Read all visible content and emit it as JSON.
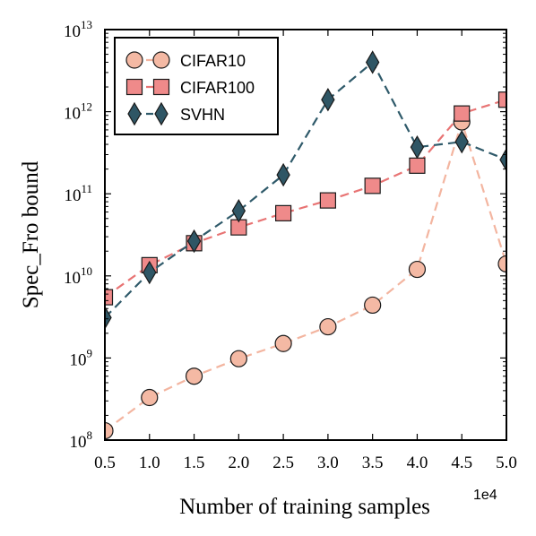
{
  "chart_data": {
    "type": "line",
    "title": "",
    "xlabel": "Number of training samples",
    "ylabel": "Spec_Fro bound",
    "x_offset_label": "1e4",
    "xlim": [
      0.5,
      5.0
    ],
    "ylim": [
      100000000.0,
      10000000000000.0
    ],
    "yscale": "log",
    "x": [
      0.5,
      1.0,
      1.5,
      2.0,
      2.5,
      3.0,
      3.5,
      4.0,
      4.5,
      5.0
    ],
    "x_tick_values": [
      0.5,
      1.0,
      1.5,
      2.0,
      2.5,
      3.0,
      3.5,
      4.0,
      4.5,
      5.0
    ],
    "x_tick_labels": [
      "0.5",
      "1.0",
      "1.5",
      "2.0",
      "2.5",
      "3.0",
      "3.5",
      "4.0",
      "4.5",
      "5.0"
    ],
    "y_tick_exponents": [
      8,
      9,
      10,
      11,
      12,
      13
    ],
    "y_tick_base": "10",
    "legend_position": "upper-left",
    "grid": false,
    "series": [
      {
        "name": "CIFAR10",
        "marker": "circle",
        "color": "#f4b9a4",
        "line_color": "#f3b5a0",
        "values": [
          130000000.0,
          330000000.0,
          600000000.0,
          980000000.0,
          1500000000.0,
          2400000000.0,
          4400000000.0,
          12000000000.0,
          750000000000.0,
          14000000000.0
        ]
      },
      {
        "name": "CIFAR100",
        "marker": "square",
        "color": "#ef8a8a",
        "line_color": "#e87474",
        "values": [
          5500000000.0,
          13500000000.0,
          25000000000.0,
          39000000000.0,
          58000000000.0,
          83000000000.0,
          125000000000.0,
          220000000000.0,
          950000000000.0,
          1400000000000.0
        ]
      },
      {
        "name": "SVHN",
        "marker": "diamond",
        "color": "#2f5665",
        "line_color": "#2f5a6a",
        "values": [
          3100000000.0,
          11000000000.0,
          26500000000.0,
          62000000000.0,
          170000000000.0,
          1400000000000.0,
          4000000000000.0,
          370000000000.0,
          430000000000.0,
          260000000000.0
        ]
      }
    ]
  }
}
